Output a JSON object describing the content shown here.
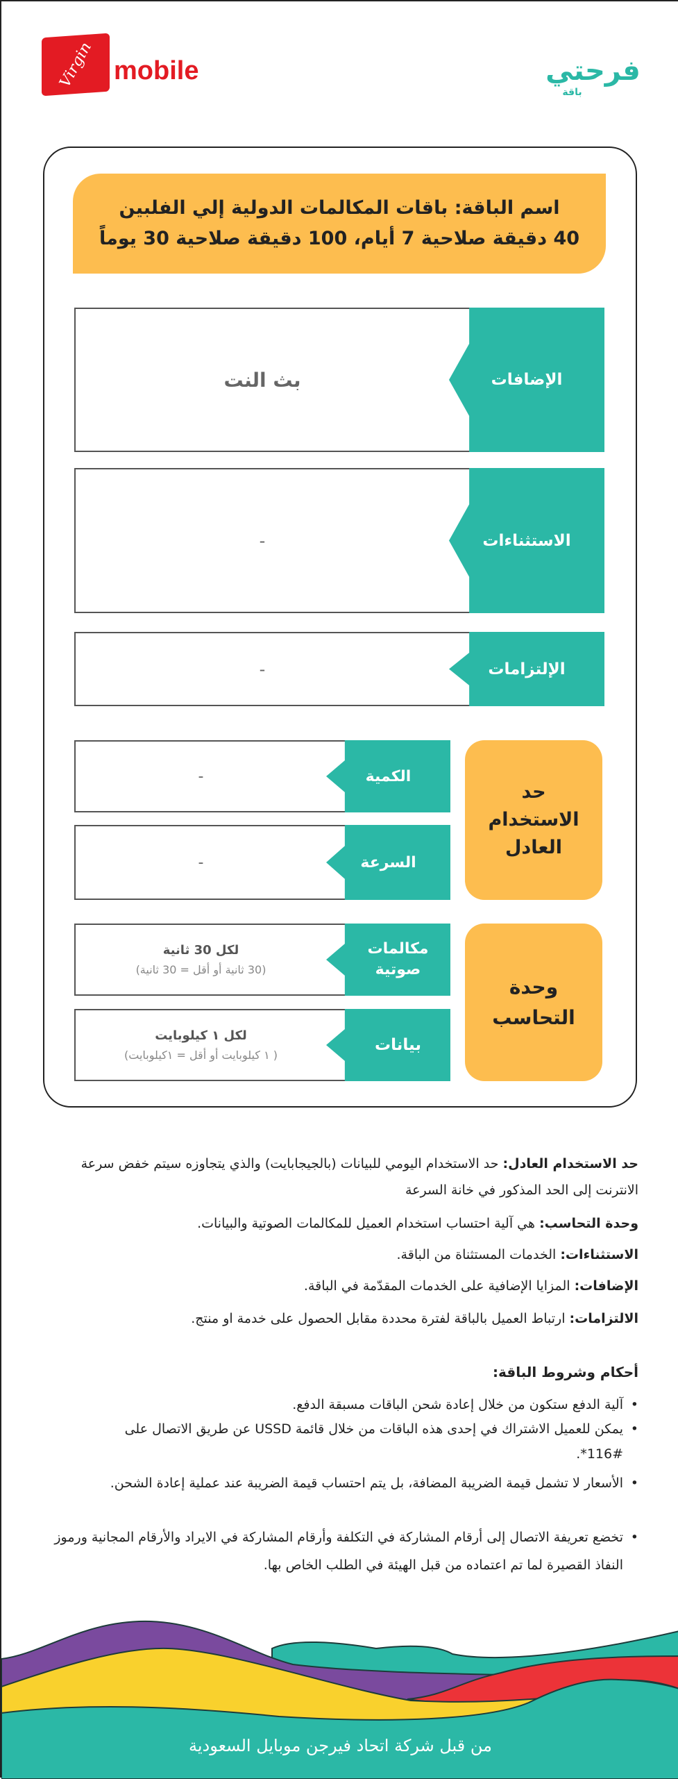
{
  "header": {
    "virgin_logo_text": "Virgin",
    "virgin_mobile_text": "mobile",
    "farhati_logo_text": "فرحتي",
    "farhati_sub": "باقة"
  },
  "package": {
    "title_line1": "اسم الباقة: باقات المكالمات الدولية  إلي الفلبين",
    "title_line2": "40 دقيقة صلاحية 7 أيام، 100 دقيقة صلاحية 30 يوماً"
  },
  "rows": {
    "addons": {
      "label": "الإضافات",
      "value": "بث النت"
    },
    "exceptions": {
      "label": "الاستثناءات",
      "value": "-"
    },
    "obligations": {
      "label": "الإلتزامات",
      "value": "-"
    }
  },
  "fair_usage": {
    "title": "حد الاستخدام العادل",
    "quantity": {
      "label": "الكمية",
      "value": "-"
    },
    "speed": {
      "label": "السرعة",
      "value": "-"
    }
  },
  "billing": {
    "title": "وحدة التحاسب",
    "voice": {
      "label": "مكالمات صوتية",
      "value": "لكل 30 ثانية",
      "note": "(30 ثانية أو أقل = 30 ثانية)"
    },
    "data": {
      "label": "بيانات",
      "value": "لكل ١ كيلوبايت",
      "note": "( ١ كيلوبايت أو أقل =  ١كيلوبايت)"
    }
  },
  "definitions": [
    {
      "term": "حد الاستخدام العادل:",
      "text": " حد الاستخدام اليومي للبيانات (بالجيجابايت) والذي يتجاوزه سيتم خفض سرعة الانترنت إلى  الحد المذكور في خانة السرعة"
    },
    {
      "term": "وحدة التحاسب:",
      "text": " هي آلية احتساب استخدام العميل للمكالمات الصوتية والبيانات."
    },
    {
      "term": "الاستثناءات:",
      "text": " الخدمات المستثناة من الباقة."
    },
    {
      "term": "الإضافات:",
      "text": " المزايا الإضافية على الخدمات المقدّمة في الباقة."
    },
    {
      "term": "الالتزامات:",
      "text": " ارتباط العميل بالباقة لفترة محددة مقابل الحصول على خدمة او منتج."
    }
  ],
  "terms": {
    "title": "أحكام وشروط الباقة:",
    "items": [
      "آلية الدفع ستكون من خلال إعادة شحن الباقات مسبقة الدفع.",
      "يمكن للعميل الاشتراك في إحدى هذه الباقات من خلال قائمة USSD عن طريق الاتصال على #116*.",
      "الأسعار لا تشمل قيمة الضريبة المضافة، بل يتم احتساب قيمة الضريبة عند عملية إعادة الشحن.",
      "تخضع تعريفة الاتصال إلى أرقام المشاركة في التكلفة وأرقام المشاركة في الايراد والأرقام المجانية ورموز النفاذ القصيرة لما تم اعتماده  من قبل الهيئة في الطلب الخاص بها."
    ]
  },
  "footer": {
    "text": "من قبل شركة اتحاد فيرجن موبايل السعودية"
  },
  "colors": {
    "teal": "#2bb8a6",
    "yellow": "#fdbd4f",
    "red": "#e31b23",
    "purple": "#7a4a9e",
    "wave_yellow": "#f9d12d"
  }
}
